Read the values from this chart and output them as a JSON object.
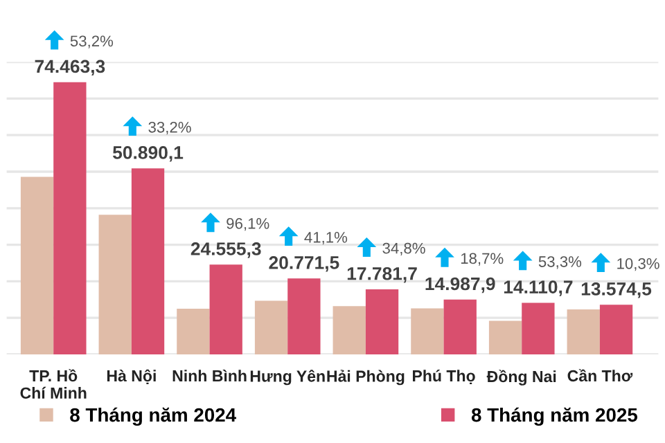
{
  "chart_data": {
    "type": "bar",
    "categories": [
      "TP. Hồ Chí Minh",
      "Hà Nội",
      "Ninh Bình",
      "Hưng Yên",
      "Hải Phòng",
      "Phú Thọ",
      "Đồng Nai",
      "Cần Thơ"
    ],
    "series": [
      {
        "name": "8 Tháng năm 2024",
        "color": "#e0bca8",
        "values": [
          48600,
          38200,
          12500,
          14700,
          13200,
          12600,
          9200,
          12300
        ]
      },
      {
        "name": "8 Tháng năm 2025",
        "color": "#d94f6e",
        "values": [
          74463.3,
          50890.1,
          24555.3,
          20771.5,
          17781.7,
          14987.9,
          14110.7,
          13574.5
        ],
        "value_labels": [
          "74.463,3",
          "50.890,1",
          "24.555,3",
          "20.771,5",
          "17.781,7",
          "14.987,9",
          "14.110,7",
          "13.574,5"
        ]
      }
    ],
    "annotations": [
      {
        "text": "53,2%",
        "x": "TP. Hồ Chí Minh",
        "y": 74463.3
      },
      {
        "text": "33,2%",
        "x": "Hà Nội",
        "y": 50890.1
      },
      {
        "text": "96,1%",
        "x": "Ninh Bình",
        "y": 24555.3
      },
      {
        "text": "41,1%",
        "x": "Hưng Yên",
        "y": 20771.5
      },
      {
        "text": "34,8%",
        "x": "Hải Phòng",
        "y": 17781.7
      },
      {
        "text": "18,7%",
        "x": "Phú Thọ",
        "y": 14987.9
      },
      {
        "text": "53,3%",
        "x": "Đồng Nai",
        "y": 14110.7
      },
      {
        "text": "10,3%",
        "x": "Cần Thơ",
        "y": 13574.5
      }
    ],
    "ylim": [
      0,
      80000
    ],
    "yticks": [
      {
        "value": 0,
        "label": null
      },
      {
        "value": 10000,
        "label": null
      },
      {
        "value": 20000,
        "label": null
      },
      {
        "value": 30000,
        "label": null
      },
      {
        "value": 40000,
        "label": null
      },
      {
        "value": 50000,
        "label": null
      },
      {
        "value": 60000,
        "label": null
      },
      {
        "value": 70000,
        "label": null
      },
      {
        "value": 80000,
        "label": null
      }
    ],
    "grid": "y",
    "legend": "bottom",
    "tick_labels": "x"
  }
}
